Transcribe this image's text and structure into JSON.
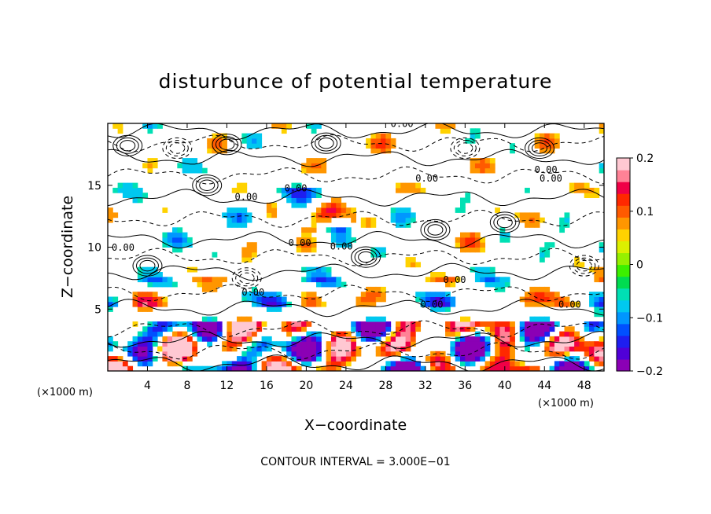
{
  "chart_data": {
    "type": "heatmap",
    "title": "disturbunce of potential temperature",
    "xlabel": "X−coordinate",
    "ylabel": "Z−coordinate",
    "x_unit": "(×1000 m)",
    "x_unit_right": "(×1000 m)",
    "xlim": [
      0,
      50
    ],
    "ylim": [
      0,
      20
    ],
    "x_ticks": [
      4,
      8,
      12,
      16,
      20,
      24,
      28,
      32,
      36,
      40,
      44,
      48
    ],
    "y_ticks": [
      5,
      10,
      15
    ],
    "colorbar": {
      "range": [
        -0.2,
        0.2
      ],
      "ticks": [
        "0.2",
        "0.1",
        "0",
        "−0.1",
        "−0.2"
      ],
      "tick_values": [
        0.2,
        0.1,
        0,
        -0.1,
        -0.2
      ],
      "colors": [
        "#8b00b5",
        "#5000d8",
        "#1e1ef0",
        "#0050ff",
        "#0096ff",
        "#00c8f0",
        "#00e0b4",
        "#00dc50",
        "#3cf000",
        "#96f000",
        "#dcf000",
        "#ffd200",
        "#ff9600",
        "#ff5a00",
        "#ff2800",
        "#f00046",
        "#ff8296",
        "#ffc8d2"
      ]
    },
    "contour_labels": [
      "0.00",
      "0.00",
      "0.00",
      "0.00",
      "0.00",
      "0.00",
      "0.00",
      "0.00",
      "0.00",
      "0.00",
      "0.00",
      "0.00",
      "0.00"
    ],
    "footer": "CONTOUR INTERVAL = 3.000E−01"
  }
}
